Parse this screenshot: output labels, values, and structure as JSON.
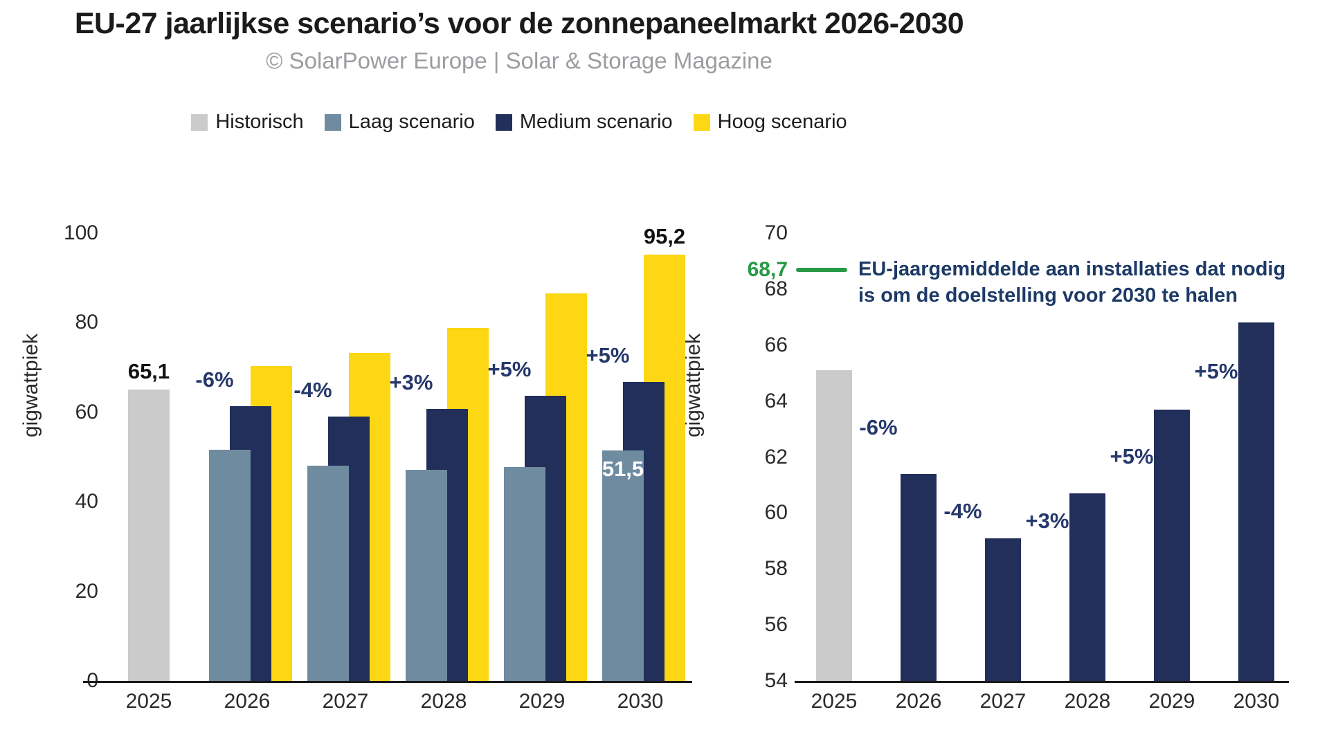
{
  "title": "EU-27 jaarlijkse scenario’s voor de zonnepaneelmarkt 2026-2030",
  "subtitle": "© SolarPower Europe | Solar & Storage Magazine",
  "colors": {
    "historisch": "#cbcbcb",
    "laag": "#6f8ba0",
    "medium": "#222f5b",
    "hoog": "#fdd713",
    "green": "#289a46",
    "pct_text": "#26386b",
    "value_text": "#111111",
    "axis_text": "#2a2a2a"
  },
  "legend": {
    "items": [
      {
        "key": "historisch",
        "label": "Historisch",
        "color": "#cbcbcb"
      },
      {
        "key": "laag",
        "label": "Laag scenario",
        "color": "#6f8ba0"
      },
      {
        "key": "medium",
        "label": "Medium scenario",
        "color": "#222f5b"
      },
      {
        "key": "hoog",
        "label": "Hoog scenario",
        "color": "#fdd713"
      }
    ]
  },
  "chart_data": [
    {
      "id": "left",
      "type": "bar",
      "title": "",
      "xlabel": "",
      "ylabel": "gigwattpiek",
      "ylim": [
        0,
        100
      ],
      "ytick_step": 20,
      "grid": false,
      "categories": [
        "2025",
        "2026",
        "2027",
        "2028",
        "2029",
        "2030"
      ],
      "series": [
        {
          "key": "historisch",
          "name": "Historisch",
          "color": "#cbcbcb",
          "values": [
            65.1,
            null,
            null,
            null,
            null,
            null
          ]
        },
        {
          "key": "laag",
          "name": "Laag scenario",
          "color": "#6f8ba0",
          "values": [
            null,
            51.6,
            48.1,
            47.1,
            47.8,
            51.5
          ]
        },
        {
          "key": "medium",
          "name": "Medium scenario",
          "color": "#222f5b",
          "values": [
            null,
            61.4,
            59.1,
            60.7,
            63.7,
            66.8
          ]
        },
        {
          "key": "hoog",
          "name": "Hoog scenario",
          "color": "#fdd713",
          "values": [
            null,
            70.3,
            73.2,
            78.9,
            86.6,
            95.2
          ]
        }
      ],
      "annotations": [
        {
          "text": "65,1",
          "year": "2025",
          "series": "historisch",
          "kind": "value-above",
          "color": "#111111"
        },
        {
          "text": "-6%",
          "year": "2026",
          "series": "medium",
          "kind": "pct-left",
          "color": "#26386b"
        },
        {
          "text": "-4%",
          "year": "2027",
          "series": "medium",
          "kind": "pct-left",
          "color": "#26386b"
        },
        {
          "text": "+3%",
          "year": "2028",
          "series": "medium",
          "kind": "pct-left",
          "color": "#26386b"
        },
        {
          "text": "+5%",
          "year": "2029",
          "series": "medium",
          "kind": "pct-left",
          "color": "#26386b"
        },
        {
          "text": "+5%",
          "year": "2030",
          "series": "medium",
          "kind": "pct-left",
          "color": "#26386b"
        },
        {
          "text": "95,2",
          "year": "2030",
          "series": "hoog",
          "kind": "value-above",
          "color": "#111111"
        },
        {
          "text": "51,5",
          "year": "2030",
          "series": "laag",
          "kind": "value-inside",
          "color": "#ffffff"
        }
      ]
    },
    {
      "id": "right",
      "type": "bar",
      "title": "",
      "xlabel": "",
      "ylabel": "gigwattpiek",
      "ylim": [
        54,
        70
      ],
      "ytick_step": 2,
      "grid": false,
      "categories": [
        "2025",
        "2026",
        "2027",
        "2028",
        "2029",
        "2030"
      ],
      "series": [
        {
          "key": "historisch",
          "name": "Historisch",
          "color": "#cbcbcb",
          "values": [
            65.1,
            null,
            null,
            null,
            null,
            null
          ]
        },
        {
          "key": "medium",
          "name": "Medium scenario",
          "color": "#222f5b",
          "values": [
            null,
            61.4,
            59.1,
            60.7,
            63.7,
            66.8
          ]
        }
      ],
      "annotations": [
        {
          "text": "-6%",
          "year": "2026",
          "series": "medium",
          "kind": "pct-between",
          "color": "#26386b"
        },
        {
          "text": "-4%",
          "year": "2027",
          "series": "medium",
          "kind": "pct-between",
          "color": "#26386b"
        },
        {
          "text": "+3%",
          "year": "2028",
          "series": "medium",
          "kind": "pct-between",
          "color": "#26386b"
        },
        {
          "text": "+5%",
          "year": "2029",
          "series": "medium",
          "kind": "pct-between",
          "color": "#26386b"
        },
        {
          "text": "+5%",
          "year": "2030",
          "series": "medium",
          "kind": "pct-between",
          "color": "#26386b"
        }
      ],
      "reference_line": {
        "value": 68.7,
        "label": "68,7",
        "color": "#289a46",
        "text_color": "#1d3a66",
        "text_lines": [
          "EU-jaargemiddelde aan installaties dat nodig",
          "is om de doelstelling voor 2030 te halen"
        ]
      }
    }
  ]
}
